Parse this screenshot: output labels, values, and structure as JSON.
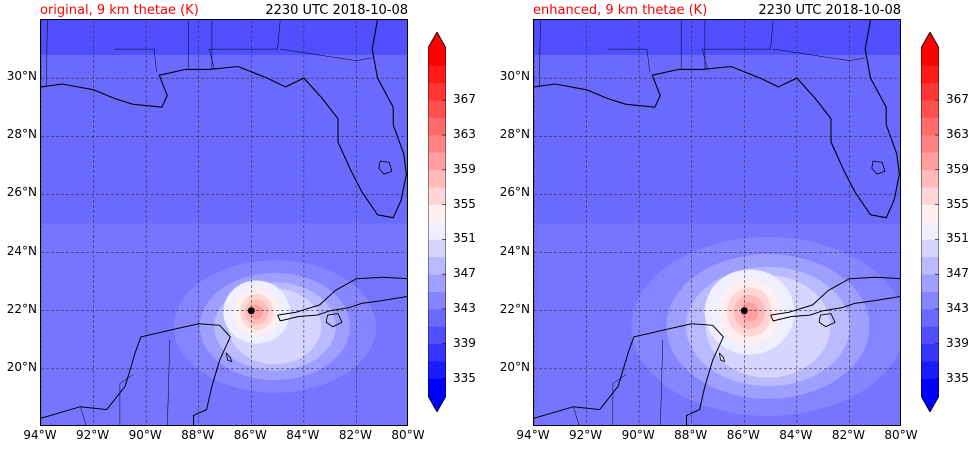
{
  "panels": [
    {
      "title_left": "original, 9 km thetae (K)",
      "title_right": "2230 UTC 2018-10-08",
      "warm_radius": 1.0,
      "storm_center": {
        "lon": -86.0,
        "lat": 22.0
      }
    },
    {
      "title_left": "enhanced, 9 km thetae (K)",
      "title_right": "2230 UTC 2018-10-08",
      "warm_radius": 1.35,
      "storm_center": {
        "lon": -86.0,
        "lat": 22.0
      }
    }
  ],
  "lat_labels": [
    "20°N",
    "22°N",
    "24°N",
    "26°N",
    "28°N",
    "30°N"
  ],
  "lon_labels": [
    "94°W",
    "92°W",
    "90°W",
    "88°W",
    "86°W",
    "84°W",
    "82°W",
    "80°W"
  ],
  "colorbar": {
    "tick_labels": [
      "335",
      "339",
      "343",
      "347",
      "351",
      "355",
      "359",
      "363",
      "367"
    ],
    "colors": [
      "#0000ff",
      "#1a1aff",
      "#3535ff",
      "#4f4fff",
      "#6a6aff",
      "#8585ff",
      "#9f9fff",
      "#babaff",
      "#d5d5ff",
      "#efefff",
      "#ffefef",
      "#ffd5d5",
      "#ffbaba",
      "#ff9f9f",
      "#ff8585",
      "#ff6a6a",
      "#ff4f4f",
      "#ff3535",
      "#ff1a1a",
      "#ff0000"
    ]
  },
  "map_extent": {
    "lon_min": -94,
    "lon_max": -80,
    "lat_min": 18,
    "lat_max": 32
  }
}
